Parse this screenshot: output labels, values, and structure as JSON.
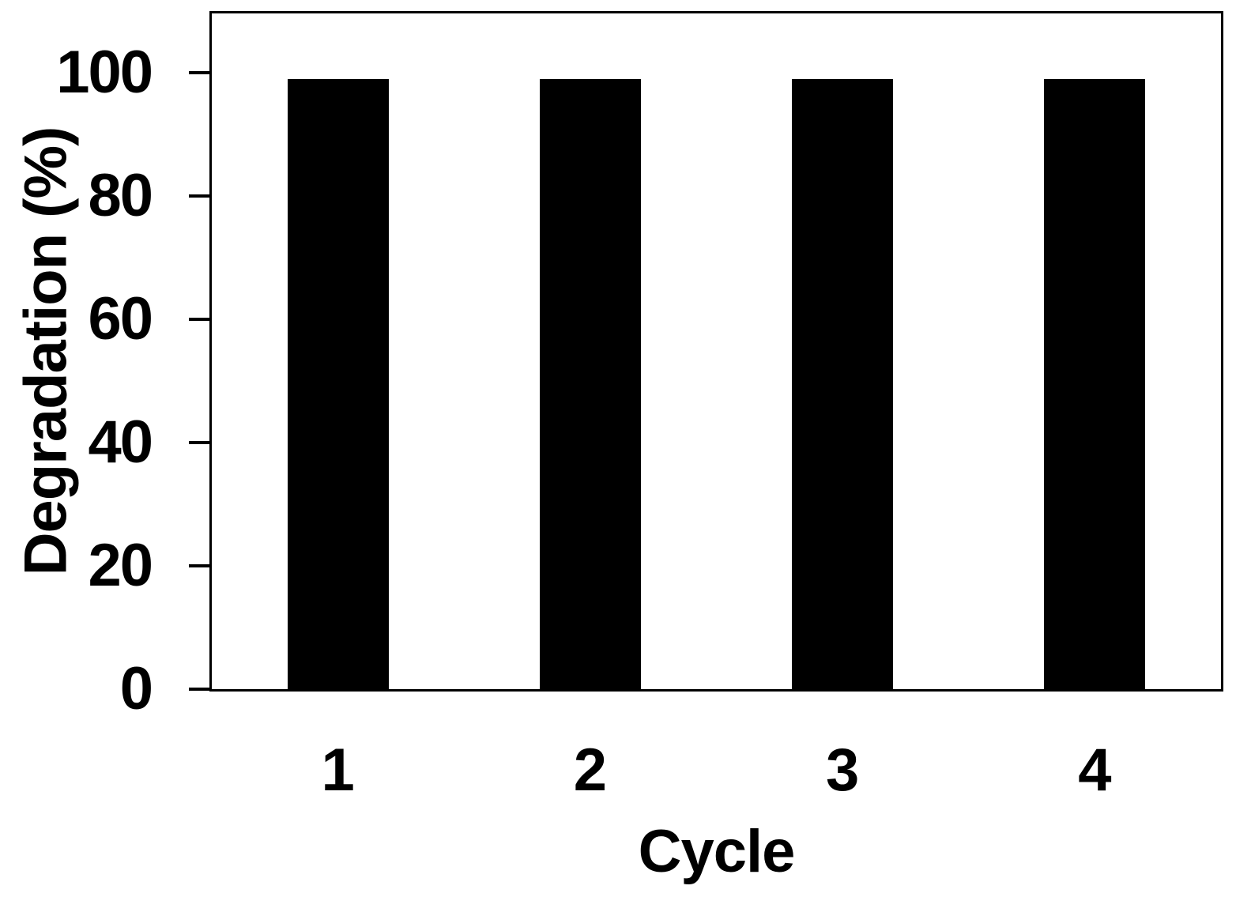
{
  "figure": {
    "background": "#ffffff",
    "axis_color": "#000000",
    "text_color": "#000000"
  },
  "chart_data": {
    "type": "bar",
    "categories": [
      "1",
      "2",
      "3",
      "4"
    ],
    "values": [
      99,
      99,
      99,
      99
    ],
    "title": "",
    "xlabel": "Cycle",
    "ylabel": "Degradation (%)",
    "ylim": [
      0,
      110
    ],
    "yticks": [
      0,
      20,
      40,
      60,
      80,
      100
    ],
    "bar_color": "#000000",
    "grid": false,
    "legend": null
  }
}
